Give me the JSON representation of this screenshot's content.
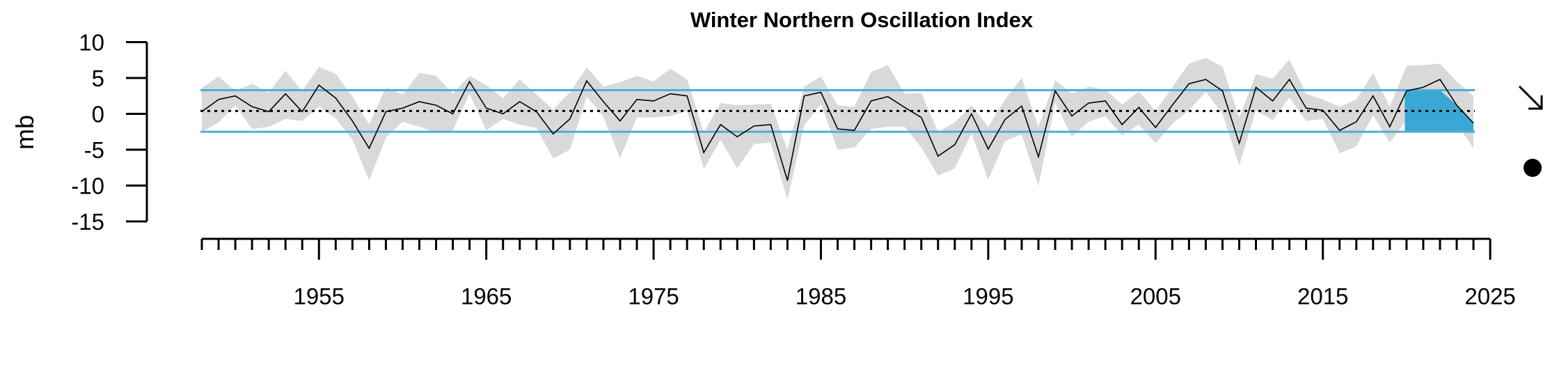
{
  "chart_data": {
    "type": "line",
    "title": "Winter Northern Oscillation Index",
    "ylabel": "mb",
    "xlabel": "",
    "ylim": [
      -15,
      10
    ],
    "xlim": [
      1948,
      2025
    ],
    "y_ticks": [
      10,
      5,
      0,
      -5,
      -10,
      -15
    ],
    "x_tick_labels": [
      1955,
      1965,
      1975,
      1985,
      1995,
      2005,
      2015,
      2025
    ],
    "mean": 0.4,
    "upper_sd": 3.3,
    "lower_sd": -2.5,
    "x": [
      1948,
      1949,
      1950,
      1951,
      1952,
      1953,
      1954,
      1955,
      1956,
      1957,
      1958,
      1959,
      1960,
      1961,
      1962,
      1963,
      1964,
      1965,
      1966,
      1967,
      1968,
      1969,
      1970,
      1971,
      1972,
      1973,
      1974,
      1975,
      1976,
      1977,
      1978,
      1979,
      1980,
      1981,
      1982,
      1983,
      1984,
      1985,
      1986,
      1987,
      1988,
      1989,
      1990,
      1991,
      1992,
      1993,
      1994,
      1995,
      1996,
      1997,
      1998,
      1999,
      2000,
      2001,
      2002,
      2003,
      2004,
      2005,
      2006,
      2007,
      2008,
      2009,
      2010,
      2011,
      2012,
      2013,
      2014,
      2015,
      2016,
      2017,
      2018,
      2019,
      2020,
      2021,
      2022,
      2023,
      2024
    ],
    "values": [
      0.3,
      2.0,
      2.5,
      1.0,
      0.3,
      2.8,
      0.3,
      4.0,
      2.2,
      -1.0,
      -4.8,
      0.3,
      0.8,
      1.7,
      1.2,
      0.0,
      4.5,
      0.8,
      0.0,
      1.7,
      0.3,
      -2.8,
      -0.7,
      4.6,
      1.7,
      -1.0,
      2.0,
      1.8,
      2.8,
      2.5,
      -5.4,
      -1.5,
      -3.2,
      -1.7,
      -1.5,
      -9.3,
      2.5,
      3.0,
      -2.1,
      -2.3,
      1.8,
      2.4,
      0.9,
      -0.5,
      -5.9,
      -4.3,
      0.0,
      -4.9,
      -0.8,
      1.1,
      -6.0,
      3.2,
      -0.3,
      1.5,
      1.8,
      -1.5,
      0.9,
      -1.9,
      1.2,
      4.2,
      4.8,
      3.2,
      -4.1,
      3.7,
      1.8,
      4.8,
      0.8,
      0.5,
      -2.3,
      -1.1,
      2.5,
      -1.8,
      3.2,
      3.7,
      4.8,
      1.2,
      -1.3
    ],
    "band_upper": [
      3.6,
      5.2,
      3.2,
      4.2,
      3.0,
      6.0,
      3.2,
      6.5,
      5.6,
      2.4,
      -1.5,
      3.7,
      2.7,
      5.7,
      5.3,
      2.8,
      5.3,
      4.0,
      2.2,
      4.8,
      2.7,
      0.6,
      3.0,
      6.5,
      3.8,
      4.4,
      5.3,
      4.5,
      6.3,
      4.8,
      -2.6,
      1.5,
      1.2,
      1.3,
      1.4,
      -5.0,
      3.8,
      5.2,
      1.2,
      1.0,
      5.8,
      6.8,
      2.8,
      2.9,
      -2.5,
      -1.2,
      1.2,
      -1.8,
      2.0,
      5.0,
      -1.8,
      4.7,
      2.8,
      3.8,
      3.4,
      1.3,
      3.1,
      0.4,
      3.7,
      7.0,
      7.8,
      6.6,
      -0.5,
      5.5,
      4.9,
      7.6,
      2.8,
      2.0,
      1.0,
      2.0,
      5.7,
      1.0,
      6.7,
      6.8,
      7.0,
      4.5,
      2.5
    ],
    "band_lower": [
      -2.5,
      -1.2,
      1.2,
      -2.1,
      -1.8,
      -0.7,
      -1.0,
      1.0,
      -0.6,
      -3.6,
      -9.3,
      -3.3,
      -1.1,
      -1.8,
      -2.6,
      -2.3,
      2.8,
      -2.3,
      -0.7,
      -1.5,
      -2.0,
      -6.2,
      -5.0,
      2.4,
      -0.4,
      -6.2,
      -0.5,
      -0.5,
      -0.3,
      0.4,
      -7.7,
      -3.6,
      -7.6,
      -4.2,
      -4.0,
      -12.0,
      -1.6,
      1.4,
      -5.0,
      -4.7,
      -2.1,
      -1.8,
      -1.8,
      -4.7,
      -8.6,
      -7.6,
      -2.7,
      -9.2,
      -3.8,
      -2.9,
      -10.1,
      1.6,
      -3.2,
      -1.1,
      -0.3,
      -3.0,
      -1.5,
      -4.1,
      -1.4,
      0.5,
      3.1,
      0.0,
      -7.2,
      0.5,
      -0.9,
      2.3,
      -1.0,
      -0.7,
      -5.5,
      -4.5,
      -0.2,
      -4.0,
      -0.9,
      0.6,
      2.5,
      -1.4,
      -4.8
    ],
    "highlight_start": 2019.9,
    "colors": {
      "band": "#d9d9d9",
      "sd_lines": "#4bafd6",
      "highlight": "#3aa7d4",
      "line": "#000000"
    },
    "indicators": {
      "trend_icon": "arrow-down-right-icon",
      "mean_status_icon": "filled-circle-icon"
    }
  }
}
